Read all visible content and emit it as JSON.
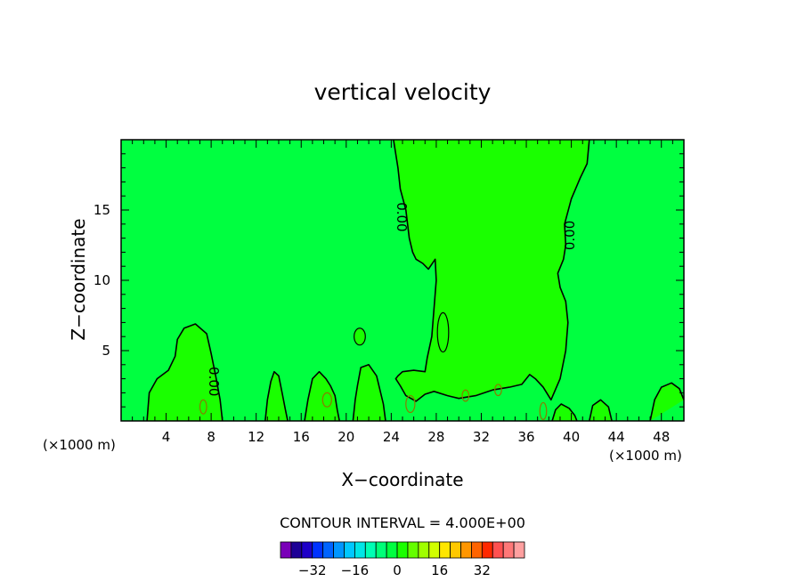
{
  "chart_data": {
    "type": "contour",
    "title": "vertical velocity",
    "xlabel": "X−coordinate",
    "ylabel": "Z−coordinate",
    "x_units_left": "(×1000 m)",
    "x_units_right": "(×1000 m)",
    "xlim": [
      0,
      50
    ],
    "ylim": [
      0,
      20
    ],
    "x_ticks": [
      4,
      8,
      12,
      16,
      20,
      24,
      28,
      32,
      36,
      40,
      44,
      48
    ],
    "y_ticks": [
      5,
      10,
      15
    ],
    "contour_interval_text": "CONTOUR INTERVAL = 4.000E+00",
    "contour_label": "0.00",
    "background_color": "#00ff40",
    "positive_region_color": "#1aff00",
    "colorbar": {
      "colors": [
        "#7a00b8",
        "#1e0096",
        "#1e00c8",
        "#0032ff",
        "#0064ff",
        "#0096ff",
        "#00c8ff",
        "#00e6e6",
        "#00ffb4",
        "#00ff78",
        "#00ff40",
        "#1aff00",
        "#64ff00",
        "#a0ff00",
        "#d2ff00",
        "#ffe600",
        "#ffc800",
        "#ff9600",
        "#ff6400",
        "#ff2800",
        "#ff5050",
        "#ff7878",
        "#ffa0a0"
      ],
      "tick_labels": [
        "−32",
        "−16",
        "0",
        "16",
        "32"
      ],
      "tick_values": [
        -32,
        -16,
        0,
        16,
        32
      ]
    },
    "zero_contour_regions": [
      {
        "name": "updraft-column",
        "points": [
          [
            24.2,
            20
          ],
          [
            24.6,
            18
          ],
          [
            24.8,
            16.5
          ],
          [
            25.3,
            15
          ],
          [
            25.6,
            13
          ],
          [
            25.9,
            12
          ],
          [
            26.2,
            11.5
          ],
          [
            26.8,
            11.2
          ],
          [
            27.3,
            10.8
          ],
          [
            27.9,
            11.5
          ],
          [
            28.0,
            10
          ],
          [
            27.8,
            8
          ],
          [
            27.6,
            6
          ],
          [
            27.2,
            4.5
          ],
          [
            27.0,
            3.5
          ],
          [
            26.0,
            3.6
          ],
          [
            25.0,
            3.5
          ],
          [
            24.6,
            3.2
          ],
          [
            24.4,
            3.0
          ],
          [
            24.8,
            2.5
          ],
          [
            25.3,
            1.8
          ],
          [
            26.2,
            1.4
          ],
          [
            27.0,
            1.9
          ],
          [
            27.8,
            2.1
          ],
          [
            29.0,
            1.8
          ],
          [
            30.0,
            1.6
          ],
          [
            31.5,
            1.8
          ],
          [
            33.0,
            2.2
          ],
          [
            34.5,
            2.4
          ],
          [
            35.6,
            2.6
          ],
          [
            36.3,
            3.3
          ],
          [
            36.8,
            3.0
          ],
          [
            37.5,
            2.4
          ],
          [
            38.2,
            1.5
          ],
          [
            39.0,
            3.0
          ],
          [
            39.5,
            5.0
          ],
          [
            39.7,
            7.0
          ],
          [
            39.5,
            8.5
          ],
          [
            39.0,
            9.5
          ],
          [
            38.8,
            10.5
          ],
          [
            39.3,
            11.5
          ],
          [
            39.5,
            12.5
          ],
          [
            39.4,
            14
          ],
          [
            40.0,
            15.8
          ],
          [
            40.8,
            17.3
          ],
          [
            41.4,
            18.3
          ],
          [
            41.6,
            20
          ]
        ]
      },
      {
        "name": "left-bump",
        "points": [
          [
            2.3,
            0
          ],
          [
            2.5,
            2.0
          ],
          [
            3.2,
            3.0
          ],
          [
            4.2,
            3.6
          ],
          [
            4.8,
            4.6
          ],
          [
            5.0,
            5.8
          ],
          [
            5.6,
            6.6
          ],
          [
            6.6,
            6.9
          ],
          [
            7.6,
            6.2
          ],
          [
            8.0,
            4.8
          ],
          [
            8.4,
            3.2
          ],
          [
            8.8,
            1.5
          ],
          [
            9.0,
            0
          ]
        ]
      },
      {
        "name": "cell-13",
        "points": [
          [
            12.8,
            0
          ],
          [
            13.0,
            1.5
          ],
          [
            13.3,
            2.8
          ],
          [
            13.6,
            3.5
          ],
          [
            14.0,
            3.2
          ],
          [
            14.3,
            2.0
          ],
          [
            14.6,
            0.8
          ],
          [
            14.8,
            0
          ]
        ]
      },
      {
        "name": "cell-17",
        "points": [
          [
            16.3,
            0
          ],
          [
            16.6,
            1.5
          ],
          [
            17.0,
            3.0
          ],
          [
            17.6,
            3.5
          ],
          [
            18.2,
            3.0
          ],
          [
            18.6,
            2.5
          ],
          [
            19.0,
            1.8
          ],
          [
            19.2,
            0.8
          ],
          [
            19.4,
            0
          ]
        ]
      },
      {
        "name": "cell-21",
        "points": [
          [
            20.6,
            0
          ],
          [
            20.8,
            1.5
          ],
          [
            21.0,
            2.5
          ],
          [
            21.3,
            3.8
          ],
          [
            22.0,
            4.0
          ],
          [
            22.7,
            3.2
          ],
          [
            23.0,
            2.2
          ],
          [
            23.3,
            1.2
          ],
          [
            23.5,
            0
          ]
        ]
      },
      {
        "name": "cell-40-low",
        "points": [
          [
            38.3,
            0
          ],
          [
            38.6,
            0.8
          ],
          [
            39.1,
            1.2
          ],
          [
            39.8,
            0.9
          ],
          [
            40.3,
            0.4
          ],
          [
            40.5,
            0
          ]
        ]
      },
      {
        "name": "cell-43",
        "points": [
          [
            41.6,
            0
          ],
          [
            41.9,
            1.1
          ],
          [
            42.6,
            1.5
          ],
          [
            43.3,
            1.0
          ],
          [
            43.6,
            0
          ]
        ]
      },
      {
        "name": "cell-48",
        "points": [
          [
            47.0,
            0
          ],
          [
            47.4,
            1.5
          ],
          [
            48.0,
            2.4
          ],
          [
            48.9,
            2.7
          ],
          [
            49.6,
            2.3
          ],
          [
            50,
            1.5
          ]
        ]
      }
    ],
    "small_features": [
      {
        "name": "blob-21",
        "cx": 21.2,
        "cy": 6.0,
        "rx": 0.5,
        "ry": 0.6,
        "filled": true
      },
      {
        "name": "blob-28",
        "cx": 28.6,
        "cy": 6.3,
        "rx": 0.5,
        "ry": 1.4,
        "filled": true
      },
      {
        "name": "blob-19",
        "cx": 18.3,
        "cy": 1.5,
        "rx": 0.4,
        "ry": 0.5,
        "filled": false
      },
      {
        "name": "blob-26",
        "cx": 25.7,
        "cy": 1.2,
        "rx": 0.4,
        "ry": 0.6,
        "filled": false
      },
      {
        "name": "blob-31",
        "cx": 30.6,
        "cy": 1.8,
        "rx": 0.3,
        "ry": 0.4,
        "filled": false
      },
      {
        "name": "blob-33",
        "cx": 33.5,
        "cy": 2.2,
        "rx": 0.3,
        "ry": 0.4,
        "filled": false
      },
      {
        "name": "blob-7",
        "cx": 7.3,
        "cy": 1.0,
        "rx": 0.3,
        "ry": 0.5,
        "filled": false
      },
      {
        "name": "blob-37",
        "cx": 37.5,
        "cy": 0.7,
        "rx": 0.3,
        "ry": 0.6,
        "filled": false
      }
    ],
    "contour_label_positions": [
      [
        24.9,
        14.5
      ],
      [
        39.9,
        13.2
      ],
      [
        8.2,
        2.8
      ]
    ]
  }
}
